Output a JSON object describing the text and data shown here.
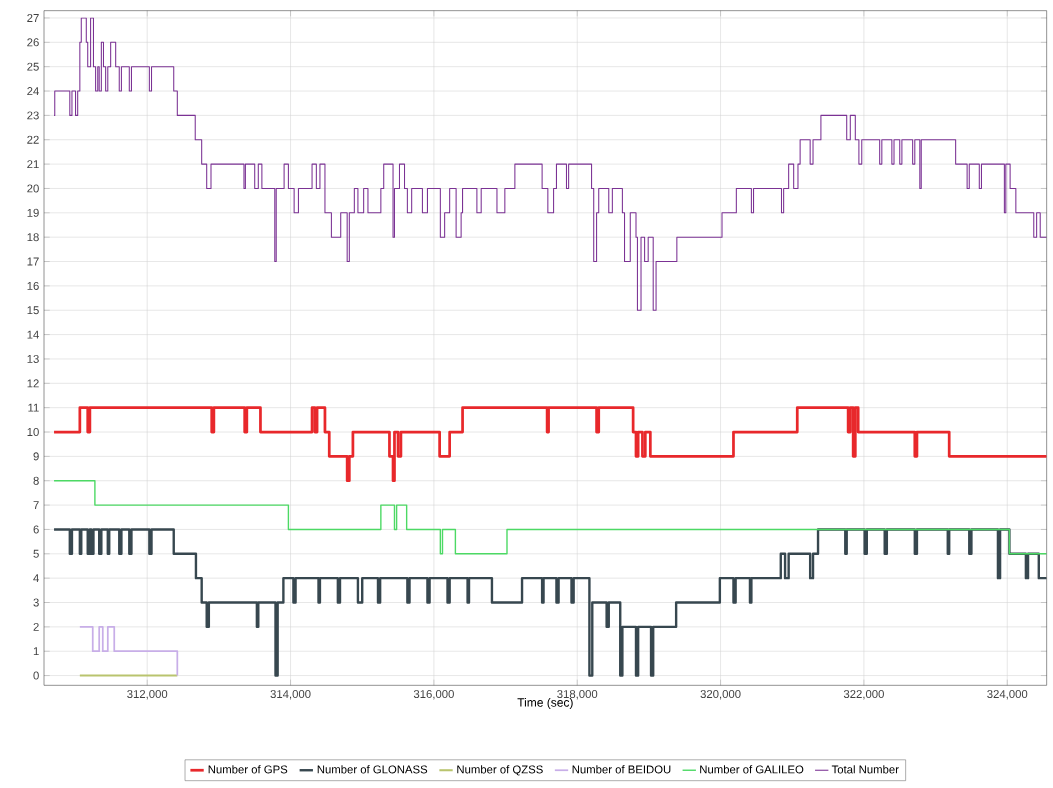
{
  "chart_data": {
    "type": "step",
    "xlabel": "Time (sec)",
    "xlim": [
      310560,
      324550
    ],
    "ylim": [
      -0.4,
      27.3
    ],
    "xticks": [
      {
        "value": 312000,
        "label": "312,000"
      },
      {
        "value": 314000,
        "label": "314,000"
      },
      {
        "value": 316000,
        "label": "316,000"
      },
      {
        "value": 318000,
        "label": "318,000"
      },
      {
        "value": 320000,
        "label": "320,000"
      },
      {
        "value": 322000,
        "label": "322,000"
      },
      {
        "value": 324000,
        "label": "324,000"
      }
    ],
    "yticks": [
      0,
      1,
      2,
      3,
      4,
      5,
      6,
      7,
      8,
      9,
      10,
      11,
      12,
      13,
      14,
      15,
      16,
      17,
      18,
      19,
      20,
      21,
      22,
      23,
      24,
      25,
      26,
      27
    ],
    "grid": true,
    "legend": "bottom",
    "series": [
      {
        "name": "Number of GPS",
        "color": "#e8282b",
        "x": [
          310700,
          311060,
          311170,
          311200,
          312900,
          312930,
          313360,
          313390,
          313580,
          314300,
          314340,
          314370,
          314480,
          314540,
          314790,
          314820,
          314870,
          315380,
          315430,
          315450,
          315500,
          315540,
          316080,
          316220,
          316400,
          317580,
          317600,
          318270,
          318300,
          318780,
          318820,
          318850,
          318910,
          318950,
          319020,
          320180,
          321070,
          321780,
          321810,
          321850,
          321880,
          321920,
          322710,
          322740,
          323190,
          324550
        ],
        "values": [
          10,
          11,
          10,
          11,
          10,
          11,
          10,
          11,
          10,
          11,
          10,
          11,
          10,
          9,
          8,
          9,
          10,
          9,
          8,
          10,
          9,
          10,
          9,
          10,
          11,
          10,
          11,
          10,
          11,
          10,
          9,
          10,
          9,
          10,
          9,
          10,
          11,
          10,
          11,
          9,
          11,
          10,
          9,
          10,
          9,
          9
        ]
      },
      {
        "name": "Number of GLONASS",
        "color": "#37474f",
        "x": [
          310700,
          310920,
          310950,
          311060,
          311080,
          311170,
          311200,
          311220,
          311250,
          311330,
          311360,
          311450,
          311470,
          311610,
          311640,
          311750,
          311780,
          312030,
          312060,
          312370,
          312680,
          312760,
          312830,
          312860,
          313530,
          313550,
          313790,
          313820,
          313900,
          314040,
          314070,
          314390,
          314410,
          314660,
          314690,
          314940,
          315000,
          315220,
          315250,
          315630,
          315660,
          315910,
          315940,
          316190,
          316220,
          316470,
          316490,
          316810,
          317230,
          317510,
          317530,
          317710,
          317740,
          317920,
          317950,
          318170,
          318210,
          318410,
          318440,
          318600,
          318630,
          318820,
          318850,
          319030,
          319060,
          319380,
          319990,
          320180,
          320210,
          320410,
          320430,
          320840,
          320900,
          320950,
          321250,
          321290,
          321360,
          321740,
          321760,
          322010,
          322040,
          322290,
          322320,
          322710,
          322740,
          323170,
          323190,
          323470,
          323500,
          323870,
          323900,
          324030,
          324260,
          324290,
          324440,
          324550
        ],
        "values": [
          6,
          5,
          6,
          5,
          6,
          5,
          6,
          5,
          6,
          5,
          6,
          5,
          6,
          5,
          6,
          5,
          6,
          5,
          6,
          5,
          4,
          3,
          2,
          3,
          2,
          3,
          0,
          3,
          4,
          3,
          4,
          3,
          4,
          3,
          4,
          3,
          4,
          3,
          4,
          3,
          4,
          3,
          4,
          3,
          4,
          3,
          4,
          3,
          4,
          3,
          4,
          3,
          4,
          3,
          4,
          0,
          3,
          2,
          3,
          0,
          2,
          0,
          2,
          0,
          2,
          3,
          4,
          3,
          4,
          3,
          4,
          5,
          4,
          5,
          4,
          5,
          6,
          5,
          6,
          5,
          6,
          5,
          6,
          5,
          6,
          5,
          6,
          5,
          6,
          4,
          6,
          5,
          4,
          5,
          4,
          4
        ]
      },
      {
        "name": "Number of QZSS",
        "color": "#b9c46e",
        "x": [
          311060,
          312420
        ],
        "values": [
          0,
          0
        ]
      },
      {
        "name": "Number of BEIDOU",
        "color": "#c8aee8",
        "x": [
          311060,
          311240,
          311330,
          311380,
          311450,
          311540,
          312420
        ],
        "values": [
          2,
          1,
          2,
          1,
          2,
          1,
          0
        ]
      },
      {
        "name": "Number of GALILEO",
        "color": "#4cd964",
        "x": [
          310700,
          311270,
          313970,
          315260,
          315450,
          315480,
          315620,
          316090,
          316120,
          316300,
          317020,
          324030,
          324550
        ],
        "values": [
          8,
          7,
          6,
          7,
          6,
          7,
          6,
          5,
          6,
          5,
          6,
          5,
          5
        ]
      },
      {
        "name": "Total Number",
        "color": "#7b3294",
        "x": [
          310700,
          310710,
          310920,
          310950,
          311000,
          311030,
          311060,
          311080,
          311150,
          311170,
          311210,
          311250,
          311280,
          311310,
          311330,
          311360,
          311390,
          311420,
          311450,
          311490,
          311560,
          311610,
          311640,
          311750,
          311780,
          312030,
          312060,
          312370,
          312420,
          312670,
          312760,
          312830,
          312890,
          313350,
          313370,
          313500,
          313550,
          313600,
          313780,
          313800,
          313910,
          313970,
          314050,
          314110,
          314300,
          314360,
          314410,
          314480,
          314570,
          314700,
          314790,
          314820,
          314890,
          314940,
          315020,
          315080,
          315260,
          315300,
          315430,
          315450,
          315520,
          315590,
          315630,
          315690,
          315840,
          315910,
          316090,
          316150,
          316220,
          316310,
          316380,
          316400,
          316600,
          316660,
          316880,
          316990,
          317130,
          317510,
          317590,
          317670,
          317710,
          317850,
          317880,
          318200,
          318230,
          318270,
          318300,
          318440,
          318490,
          318630,
          318660,
          318740,
          318820,
          318840,
          318890,
          318940,
          318990,
          319060,
          319100,
          319390,
          320020,
          320220,
          320430,
          320460,
          320850,
          320880,
          320950,
          321020,
          321080,
          321110,
          321250,
          321290,
          321400,
          321760,
          321810,
          321880,
          321930,
          321970,
          322220,
          322250,
          322390,
          322420,
          322500,
          322530,
          322680,
          322710,
          322780,
          322800,
          323280,
          323440,
          323470,
          323610,
          323640,
          323960,
          323980,
          324040,
          324120,
          324370,
          324410,
          324460,
          324550
        ],
        "values": [
          23,
          24,
          23,
          24,
          23,
          24,
          26,
          27,
          26,
          25,
          27,
          25,
          24,
          25,
          24,
          26,
          25,
          24,
          25,
          26,
          25,
          24,
          25,
          24,
          25,
          24,
          25,
          24,
          23,
          22,
          21,
          20,
          21,
          20,
          21,
          20,
          21,
          20,
          17,
          20,
          21,
          20,
          19,
          20,
          21,
          20,
          21,
          19,
          18,
          19,
          17,
          19,
          20,
          19,
          20,
          19,
          20,
          21,
          18,
          20,
          21,
          20,
          19,
          20,
          19,
          20,
          18,
          19,
          20,
          18,
          19,
          20,
          19,
          20,
          19,
          20,
          21,
          20,
          19,
          20,
          21,
          20,
          21,
          20,
          17,
          19,
          20,
          19,
          20,
          19,
          17,
          19,
          18,
          15,
          18,
          17,
          18,
          15,
          17,
          18,
          19,
          20,
          19,
          20,
          19,
          20,
          21,
          20,
          21,
          22,
          21,
          22,
          23,
          22,
          23,
          22,
          21,
          22,
          21,
          22,
          21,
          22,
          21,
          22,
          21,
          22,
          20,
          22,
          21,
          20,
          21,
          20,
          21,
          19,
          21,
          20,
          19,
          18,
          19,
          18,
          18
        ]
      }
    ]
  }
}
